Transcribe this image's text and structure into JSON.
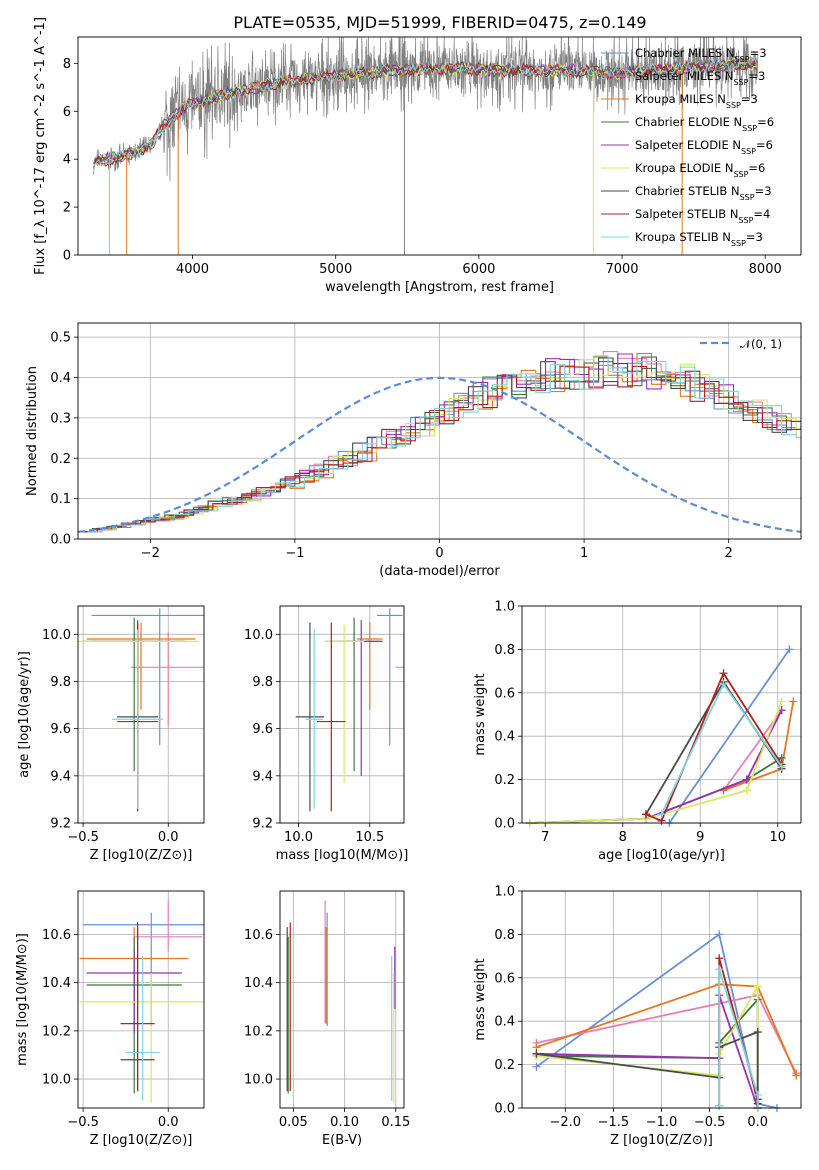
{
  "figure_title": "PLATE=0535, MJD=51999, FIBERID=0475, z=0.149",
  "colors": {
    "chabrier_miles": "#6a8fd6",
    "salpeter_miles": "#e77fb6",
    "kroupa_miles": "#e8761f",
    "chabrier_elodie": "#3d7a3d",
    "salpeter_elodie": "#9b2fb5",
    "kroupa_elodie": "#d9e860",
    "chabrier_stelib": "#4a4a4a",
    "salpeter_stelib": "#b21f1f",
    "kroupa_stelib": "#7fd4dc",
    "data": "#808080",
    "normal": "#5b8bd9",
    "grid": "#b0b0b0"
  },
  "chart_data": [
    {
      "id": "spectrum",
      "type": "line",
      "title": "PLATE=0535, MJD=51999, FIBERID=0475, z=0.149",
      "xlabel": "wavelength [Angstrom, rest frame]",
      "ylabel": "Flux [f_λ 10^-17 erg cm^-2 s^-1 A^-1]",
      "xlim": [
        3200,
        8250
      ],
      "ylim": [
        0,
        9.1
      ],
      "xticks": [
        4000,
        5000,
        6000,
        7000,
        8000
      ],
      "yticks": [
        0,
        2,
        4,
        6,
        8
      ],
      "grid": false,
      "legend_placement": "upper-right",
      "continuum_knots": {
        "x": [
          3310,
          3500,
          3700,
          3800,
          3950,
          4100,
          4300,
          4600,
          5000,
          5400,
          5800,
          6200,
          6600,
          7000,
          7400,
          7700,
          7900
        ],
        "y": [
          3.9,
          4.1,
          4.5,
          5.4,
          6.2,
          6.5,
          6.8,
          7.2,
          7.5,
          7.7,
          7.8,
          7.7,
          7.7,
          7.6,
          7.8,
          7.9,
          8.0
        ]
      },
      "series": [
        {
          "name": "Chabrier MILES",
          "nssp": "3"
        },
        {
          "name": "Salpeter MILES",
          "nssp": "3"
        },
        {
          "name": "Kroupa MILES",
          "nssp": "3"
        },
        {
          "name": "Chabrier ELODIE",
          "nssp": "6"
        },
        {
          "name": "Salpeter ELODIE",
          "nssp": "6"
        },
        {
          "name": "Kroupa ELODIE",
          "nssp": "6"
        },
        {
          "name": "Chabrier STELIB",
          "nssp": "3"
        },
        {
          "name": "Salpeter STELIB",
          "nssp": "4"
        },
        {
          "name": "Kroupa STELIB",
          "nssp": "3"
        }
      ]
    },
    {
      "id": "residuals",
      "type": "histogram",
      "xlabel": "(data-model)/error",
      "ylabel": "Normed distribution",
      "xlim": [
        -2.5,
        2.5
      ],
      "ylim": [
        0,
        0.535
      ],
      "xticks": [
        -2,
        -1,
        0,
        1,
        2
      ],
      "yticks": [
        0.0,
        0.1,
        0.2,
        0.3,
        0.4,
        0.5
      ],
      "grid": true,
      "legend": "𝒩(0, 1)",
      "bin_width": 0.1,
      "bin_start": -2.5,
      "envelope": [
        0.02,
        0.025,
        0.032,
        0.038,
        0.045,
        0.05,
        0.055,
        0.065,
        0.075,
        0.085,
        0.095,
        0.105,
        0.115,
        0.128,
        0.14,
        0.155,
        0.17,
        0.185,
        0.2,
        0.215,
        0.23,
        0.245,
        0.262,
        0.28,
        0.3,
        0.32,
        0.335,
        0.35,
        0.365,
        0.378,
        0.39,
        0.398,
        0.405,
        0.41,
        0.415,
        0.418,
        0.42,
        0.418,
        0.415,
        0.41,
        0.4,
        0.39,
        0.375,
        0.36,
        0.345,
        0.33,
        0.315,
        0.3,
        0.285,
        0.27,
        0.26,
        0.25,
        0.24,
        0.225,
        0.21,
        0.195,
        0.18,
        0.165,
        0.15,
        0.135,
        0.12,
        0.11,
        0.1,
        0.09,
        0.082,
        0.075,
        0.068,
        0.062,
        0.056,
        0.05,
        0.045,
        0.04,
        0.036,
        0.032,
        0.028,
        0.025,
        0.022,
        0.02,
        0.018,
        0.016
      ]
    },
    {
      "id": "age_vs_Z",
      "type": "errorbar",
      "xlabel": "Z [log10(Z/Z⊙)]",
      "ylabel": "age [log10(age/yr)]",
      "xlim": [
        -0.53,
        0.21
      ],
      "ylim": [
        9.2,
        10.12
      ],
      "xticks": [
        -0.5,
        0.0
      ],
      "yticks": [
        9.2,
        9.4,
        9.6,
        9.8,
        10.0
      ],
      "grid": true,
      "points": [
        {
          "series": 0,
          "x": -0.05,
          "xerr": 0.4,
          "y": 10.08,
          "yerr_lo": 0.55,
          "yerr_hi": 0.03
        },
        {
          "series": 1,
          "x": 0.0,
          "xerr": 0.22,
          "y": 9.86,
          "yerr_lo": 0.25,
          "yerr_hi": 0.15
        },
        {
          "series": 2,
          "x": -0.16,
          "xerr": 0.32,
          "y": 9.98,
          "yerr_lo": 0.3,
          "yerr_hi": 0.07
        },
        {
          "series": 3,
          "x": -0.2,
          "xerr": 0.3,
          "y": 9.97,
          "yerr_lo": 0.55,
          "yerr_hi": 0.1
        },
        {
          "series": 4,
          "x": -0.18,
          "xerr": 0.27,
          "y": 9.97,
          "yerr_lo": 0.57,
          "yerr_hi": 0.09
        },
        {
          "series": 5,
          "x": -0.18,
          "xerr": 0.36,
          "y": 9.97,
          "yerr_lo": 0.6,
          "yerr_hi": 0.07
        },
        {
          "series": 6,
          "x": -0.18,
          "xerr": 0.12,
          "y": 9.65,
          "yerr_lo": 0.4,
          "yerr_hi": 0.4
        },
        {
          "series": 7,
          "x": -0.18,
          "xerr": 0.12,
          "y": 9.63,
          "yerr_lo": 0.38,
          "yerr_hi": 0.42
        },
        {
          "series": 8,
          "x": -0.18,
          "xerr": 0.15,
          "y": 9.64,
          "yerr_lo": 0.38,
          "yerr_hi": 0.38
        }
      ]
    },
    {
      "id": "age_vs_mass",
      "type": "errorbar",
      "xlabel": "mass [log10(M/M⊙)]",
      "ylabel": "",
      "xlim": [
        9.87,
        10.74
      ],
      "ylim": [
        9.2,
        10.12
      ],
      "xticks": [
        10.0,
        10.5
      ],
      "yticks": [
        9.2,
        9.4,
        9.6,
        9.8,
        10.0
      ],
      "grid": true,
      "points": [
        {
          "series": 0,
          "x": 10.64,
          "xerr": 0.09,
          "y": 10.08,
          "yerr_lo": 0.55,
          "yerr_hi": 0.03
        },
        {
          "series": 1,
          "x": 10.74,
          "xerr": 0.06,
          "y": 9.86,
          "yerr_lo": 0.25,
          "yerr_hi": 0.15
        },
        {
          "series": 2,
          "x": 10.5,
          "xerr": 0.09,
          "y": 9.98,
          "yerr_lo": 0.3,
          "yerr_hi": 0.07
        },
        {
          "series": 3,
          "x": 10.39,
          "xerr": 0.2,
          "y": 9.97,
          "yerr_lo": 0.55,
          "yerr_hi": 0.1
        },
        {
          "series": 4,
          "x": 10.44,
          "xerr": 0.14,
          "y": 9.97,
          "yerr_lo": 0.57,
          "yerr_hi": 0.09
        },
        {
          "series": 5,
          "x": 10.32,
          "xerr": 0.14,
          "y": 9.97,
          "yerr_lo": 0.6,
          "yerr_hi": 0.07
        },
        {
          "series": 6,
          "x": 10.08,
          "xerr": 0.1,
          "y": 9.65,
          "yerr_lo": 0.4,
          "yerr_hi": 0.4
        },
        {
          "series": 7,
          "x": 10.23,
          "xerr": 0.1,
          "y": 9.63,
          "yerr_lo": 0.38,
          "yerr_hi": 0.42
        },
        {
          "series": 8,
          "x": 10.11,
          "xerr": 0.06,
          "y": 9.64,
          "yerr_lo": 0.38,
          "yerr_hi": 0.38
        }
      ]
    },
    {
      "id": "weight_vs_age",
      "type": "line",
      "xlabel": "age [log10(age/yr)]",
      "ylabel": "mass weight",
      "xlim": [
        6.7,
        10.3
      ],
      "ylim": [
        0,
        1.0
      ],
      "xticks": [
        7,
        8,
        9,
        10
      ],
      "yticks": [
        0.0,
        0.2,
        0.4,
        0.6,
        0.8,
        1.0
      ],
      "grid": true,
      "series": [
        {
          "series": 0,
          "x": [
            8.6,
            10.15
          ],
          "y": [
            0.0,
            0.8
          ]
        },
        {
          "series": 1,
          "x": [
            9.3,
            10.05
          ],
          "y": [
            0.15,
            0.52
          ]
        },
        {
          "series": 2,
          "x": [
            9.3,
            10.05,
            10.2
          ],
          "y": [
            0.15,
            0.25,
            0.56
          ]
        },
        {
          "series": 3,
          "x": [
            6.8,
            8.3,
            9.6,
            10.05
          ],
          "y": [
            0.0,
            0.02,
            0.2,
            0.3
          ]
        },
        {
          "series": 4,
          "x": [
            6.8,
            8.3,
            9.6,
            10.05
          ],
          "y": [
            0.0,
            0.02,
            0.2,
            0.52
          ]
        },
        {
          "series": 5,
          "x": [
            6.8,
            8.3,
            9.6,
            10.05
          ],
          "y": [
            0.0,
            0.02,
            0.15,
            0.56
          ]
        },
        {
          "series": 6,
          "x": [
            8.3,
            9.3,
            10.05
          ],
          "y": [
            0.04,
            0.65,
            0.25
          ]
        },
        {
          "series": 7,
          "x": [
            8.3,
            8.5,
            9.3,
            10.05
          ],
          "y": [
            0.04,
            0.01,
            0.69,
            0.27
          ]
        },
        {
          "series": 8,
          "x": [
            8.5,
            9.3,
            10.05
          ],
          "y": [
            0.04,
            0.64,
            0.26
          ]
        }
      ]
    },
    {
      "id": "mass_vs_Z",
      "type": "errorbar",
      "xlabel": "Z [log10(Z/Z⊙)]",
      "ylabel": "mass [log10(M/M⊙)]",
      "xlim": [
        -0.53,
        0.21
      ],
      "ylim": [
        9.88,
        10.78
      ],
      "xticks": [
        -0.5,
        0.0
      ],
      "yticks": [
        10.0,
        10.2,
        10.4,
        10.6
      ],
      "grid": true,
      "points": [
        {
          "series": 0,
          "x": -0.1,
          "xerr": 0.4,
          "y": 10.64,
          "yerr_lo": 0.42,
          "yerr_hi": 0.05
        },
        {
          "series": 1,
          "x": 0.0,
          "xerr": 0.2,
          "y": 10.59,
          "yerr_lo": 0.06,
          "yerr_hi": 0.15
        },
        {
          "series": 2,
          "x": -0.2,
          "xerr": 0.32,
          "y": 10.5,
          "yerr_lo": 0.27,
          "yerr_hi": 0.13
        },
        {
          "series": 3,
          "x": -0.2,
          "xerr": 0.28,
          "y": 10.39,
          "yerr_lo": 0.45,
          "yerr_hi": 0.2
        },
        {
          "series": 4,
          "x": -0.2,
          "xerr": 0.28,
          "y": 10.44,
          "yerr_lo": 0.25,
          "yerr_hi": 0.1
        },
        {
          "series": 5,
          "x": -0.1,
          "xerr": 0.42,
          "y": 10.32,
          "yerr_lo": 0.42,
          "yerr_hi": 0.12
        },
        {
          "series": 6,
          "x": -0.18,
          "xerr": 0.1,
          "y": 10.08,
          "yerr_lo": 0.13,
          "yerr_hi": 0.55
        },
        {
          "series": 7,
          "x": -0.18,
          "xerr": 0.1,
          "y": 10.23,
          "yerr_lo": 0.28,
          "yerr_hi": 0.42
        },
        {
          "series": 8,
          "x": -0.15,
          "xerr": 0.1,
          "y": 10.11,
          "yerr_lo": 0.2,
          "yerr_hi": 0.4
        }
      ]
    },
    {
      "id": "mass_vs_ebv",
      "type": "errorbar",
      "xlabel": "E(B-V)",
      "ylabel": "",
      "xlim": [
        0.037,
        0.158
      ],
      "ylim": [
        9.88,
        10.78
      ],
      "xticks": [
        0.05,
        0.1,
        0.15
      ],
      "yticks": [
        10.0,
        10.2,
        10.4,
        10.6
      ],
      "grid": true,
      "points": [
        {
          "series": 0,
          "x": 0.083,
          "xerr": 0,
          "y": 10.64,
          "yerr_lo": 0.42,
          "yerr_hi": 0.05
        },
        {
          "series": 1,
          "x": 0.081,
          "xerr": 0,
          "y": 10.59,
          "yerr_lo": 0.36,
          "yerr_hi": 0.15
        },
        {
          "series": 2,
          "x": 0.082,
          "xerr": 0,
          "y": 10.5,
          "yerr_lo": 0.27,
          "yerr_hi": 0.13
        },
        {
          "series": 3,
          "x": 0.045,
          "xerr": 0,
          "y": 10.39,
          "yerr_lo": 0.45,
          "yerr_hi": 0.2
        },
        {
          "series": 4,
          "x": 0.149,
          "xerr": 0,
          "y": 10.44,
          "yerr_lo": 0.15,
          "yerr_hi": 0.11
        },
        {
          "series": 5,
          "x": 0.148,
          "xerr": 0,
          "y": 10.32,
          "yerr_lo": 0.42,
          "yerr_hi": 0.12
        },
        {
          "series": 6,
          "x": 0.044,
          "xerr": 0,
          "y": 10.08,
          "yerr_lo": 0.13,
          "yerr_hi": 0.55
        },
        {
          "series": 7,
          "x": 0.047,
          "xerr": 0,
          "y": 10.23,
          "yerr_lo": 0.28,
          "yerr_hi": 0.42
        },
        {
          "series": 8,
          "x": 0.146,
          "xerr": 0,
          "y": 10.11,
          "yerr_lo": 0.2,
          "yerr_hi": 0.4
        }
      ]
    },
    {
      "id": "weight_vs_Z",
      "type": "line",
      "xlabel": "Z [log10(Z/Z⊙)]",
      "ylabel": "mass weight",
      "xlim": [
        -2.45,
        0.45
      ],
      "ylim": [
        0,
        1.0
      ],
      "xticks": [
        -2.0,
        -1.5,
        -1.0,
        -0.5,
        0.0
      ],
      "yticks": [
        0.0,
        0.2,
        0.4,
        0.6,
        0.8,
        1.0
      ],
      "grid": true,
      "series": [
        {
          "series": 0,
          "x": [
            -2.3,
            -0.4,
            0.0,
            0.2
          ],
          "y": [
            0.19,
            0.8,
            0.02,
            0.0
          ]
        },
        {
          "series": 1,
          "x": [
            -2.3,
            0.0,
            0.4
          ],
          "y": [
            0.3,
            0.52,
            0.16
          ]
        },
        {
          "series": 2,
          "x": [
            -2.3,
            -0.4,
            0.0,
            0.4
          ],
          "y": [
            0.28,
            0.57,
            0.56,
            0.15
          ]
        },
        {
          "series": 3,
          "x": [
            -2.3,
            -0.4,
            -0.4,
            0.0,
            0.0
          ],
          "y": [
            0.24,
            0.23,
            0.3,
            0.5,
            0.0
          ]
        },
        {
          "series": 4,
          "x": [
            -2.3,
            -0.4,
            -0.4,
            0.0
          ],
          "y": [
            0.25,
            0.23,
            0.52,
            0.0
          ]
        },
        {
          "series": 5,
          "x": [
            -2.3,
            -0.4,
            -0.4,
            0.0,
            0.0
          ],
          "y": [
            0.24,
            0.15,
            0.25,
            0.56,
            0.0
          ]
        },
        {
          "series": 6,
          "x": [
            -2.3,
            -0.4,
            -0.4,
            0.0,
            0.0
          ],
          "y": [
            0.25,
            0.14,
            0.28,
            0.35,
            0.02
          ]
        },
        {
          "series": 7,
          "x": [
            -0.4,
            -0.4,
            0.0,
            0.0
          ],
          "y": [
            0.01,
            0.69,
            0.04,
            0.0
          ]
        },
        {
          "series": 8,
          "x": [
            -0.4,
            -0.4,
            0.0,
            0.0
          ],
          "y": [
            0.01,
            0.64,
            0.06,
            0.0
          ]
        }
      ]
    }
  ]
}
